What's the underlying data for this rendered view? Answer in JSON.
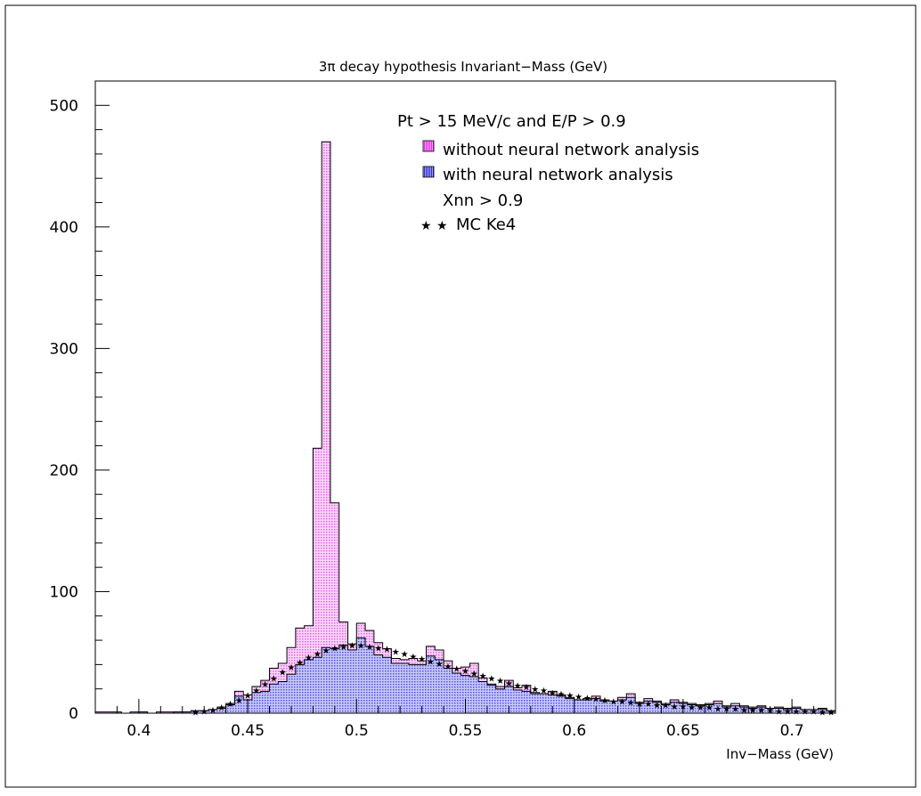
{
  "chart_data": {
    "type": "bar",
    "title": "3π decay hypothesis Invariant−Mass (GeV)",
    "xlabel": "Inv−Mass (GeV)",
    "ylabel": "",
    "xlim": [
      0.38,
      0.72
    ],
    "ylim": [
      0,
      520
    ],
    "bin_start": 0.38,
    "bin_width": 0.004,
    "x_ticks": [
      "0.4",
      "0.45",
      "0.5",
      "0.55",
      "0.6",
      "0.65",
      "0.7"
    ],
    "x_tick_values": [
      0.4,
      0.45,
      0.5,
      0.55,
      0.6,
      0.65,
      0.7
    ],
    "y_ticks": [
      "0",
      "100",
      "200",
      "300",
      "400",
      "500"
    ],
    "y_tick_values": [
      0,
      100,
      200,
      300,
      400,
      500
    ],
    "legend": {
      "header": "Pt > 15 MeV/c and E/P > 0.9",
      "note": "Xnn > 0.9",
      "position": "top-right"
    },
    "series": [
      {
        "name": "without neural network analysis",
        "color": "#e060e0",
        "values": [
          1,
          1,
          1,
          0,
          1,
          1,
          0,
          1,
          1,
          1,
          1,
          2,
          2,
          3,
          5,
          8,
          18,
          15,
          22,
          27,
          37,
          41,
          54,
          70,
          72,
          218,
          470,
          173,
          75,
          57,
          74,
          68,
          58,
          53,
          45,
          44,
          45,
          43,
          55,
          52,
          43,
          37,
          38,
          41,
          29,
          24,
          22,
          27,
          21,
          23,
          17,
          16,
          18,
          15,
          13,
          11,
          12,
          14,
          11,
          10,
          13,
          16,
          9,
          12,
          10,
          8,
          11,
          9,
          8,
          7,
          8,
          10,
          6,
          8,
          6,
          5,
          6,
          4,
          5,
          4,
          5,
          3,
          3,
          4,
          2
        ]
      },
      {
        "name": "with neural network analysis",
        "color": "#5050e0",
        "values": [
          0,
          0,
          0,
          0,
          0,
          1,
          0,
          0,
          0,
          1,
          1,
          2,
          2,
          3,
          4,
          7,
          14,
          11,
          17,
          18,
          24,
          26,
          32,
          40,
          44,
          46,
          54,
          53,
          56,
          52,
          62,
          55,
          48,
          46,
          41,
          41,
          40,
          40,
          47,
          44,
          37,
          33,
          31,
          30,
          26,
          23,
          20,
          22,
          19,
          18,
          16,
          16,
          15,
          14,
          12,
          11,
          11,
          12,
          10,
          10,
          11,
          13,
          8,
          10,
          9,
          7,
          9,
          8,
          7,
          6,
          7,
          8,
          5,
          6,
          5,
          4,
          5,
          4,
          4,
          3,
          4,
          3,
          3,
          3,
          2
        ]
      },
      {
        "name": "MC Ke4",
        "color": "#000000",
        "values": [
          0,
          0,
          0,
          0,
          0,
          0,
          0,
          0,
          0,
          0,
          0,
          1,
          2,
          3,
          5,
          8,
          11,
          15,
          19,
          24,
          29,
          34,
          38,
          42,
          46,
          49,
          52,
          54,
          55,
          56,
          56,
          55,
          54,
          53,
          51,
          49,
          47,
          45,
          43,
          41,
          39,
          37,
          35,
          33,
          31,
          29,
          27,
          25,
          23,
          22,
          20,
          19,
          17,
          16,
          15,
          14,
          13,
          12,
          11,
          10,
          10,
          9,
          8,
          8,
          7,
          7,
          6,
          6,
          5,
          5,
          5,
          4,
          4,
          4,
          3,
          3,
          3,
          3,
          2,
          2,
          2,
          2,
          2,
          1,
          1
        ]
      }
    ]
  }
}
